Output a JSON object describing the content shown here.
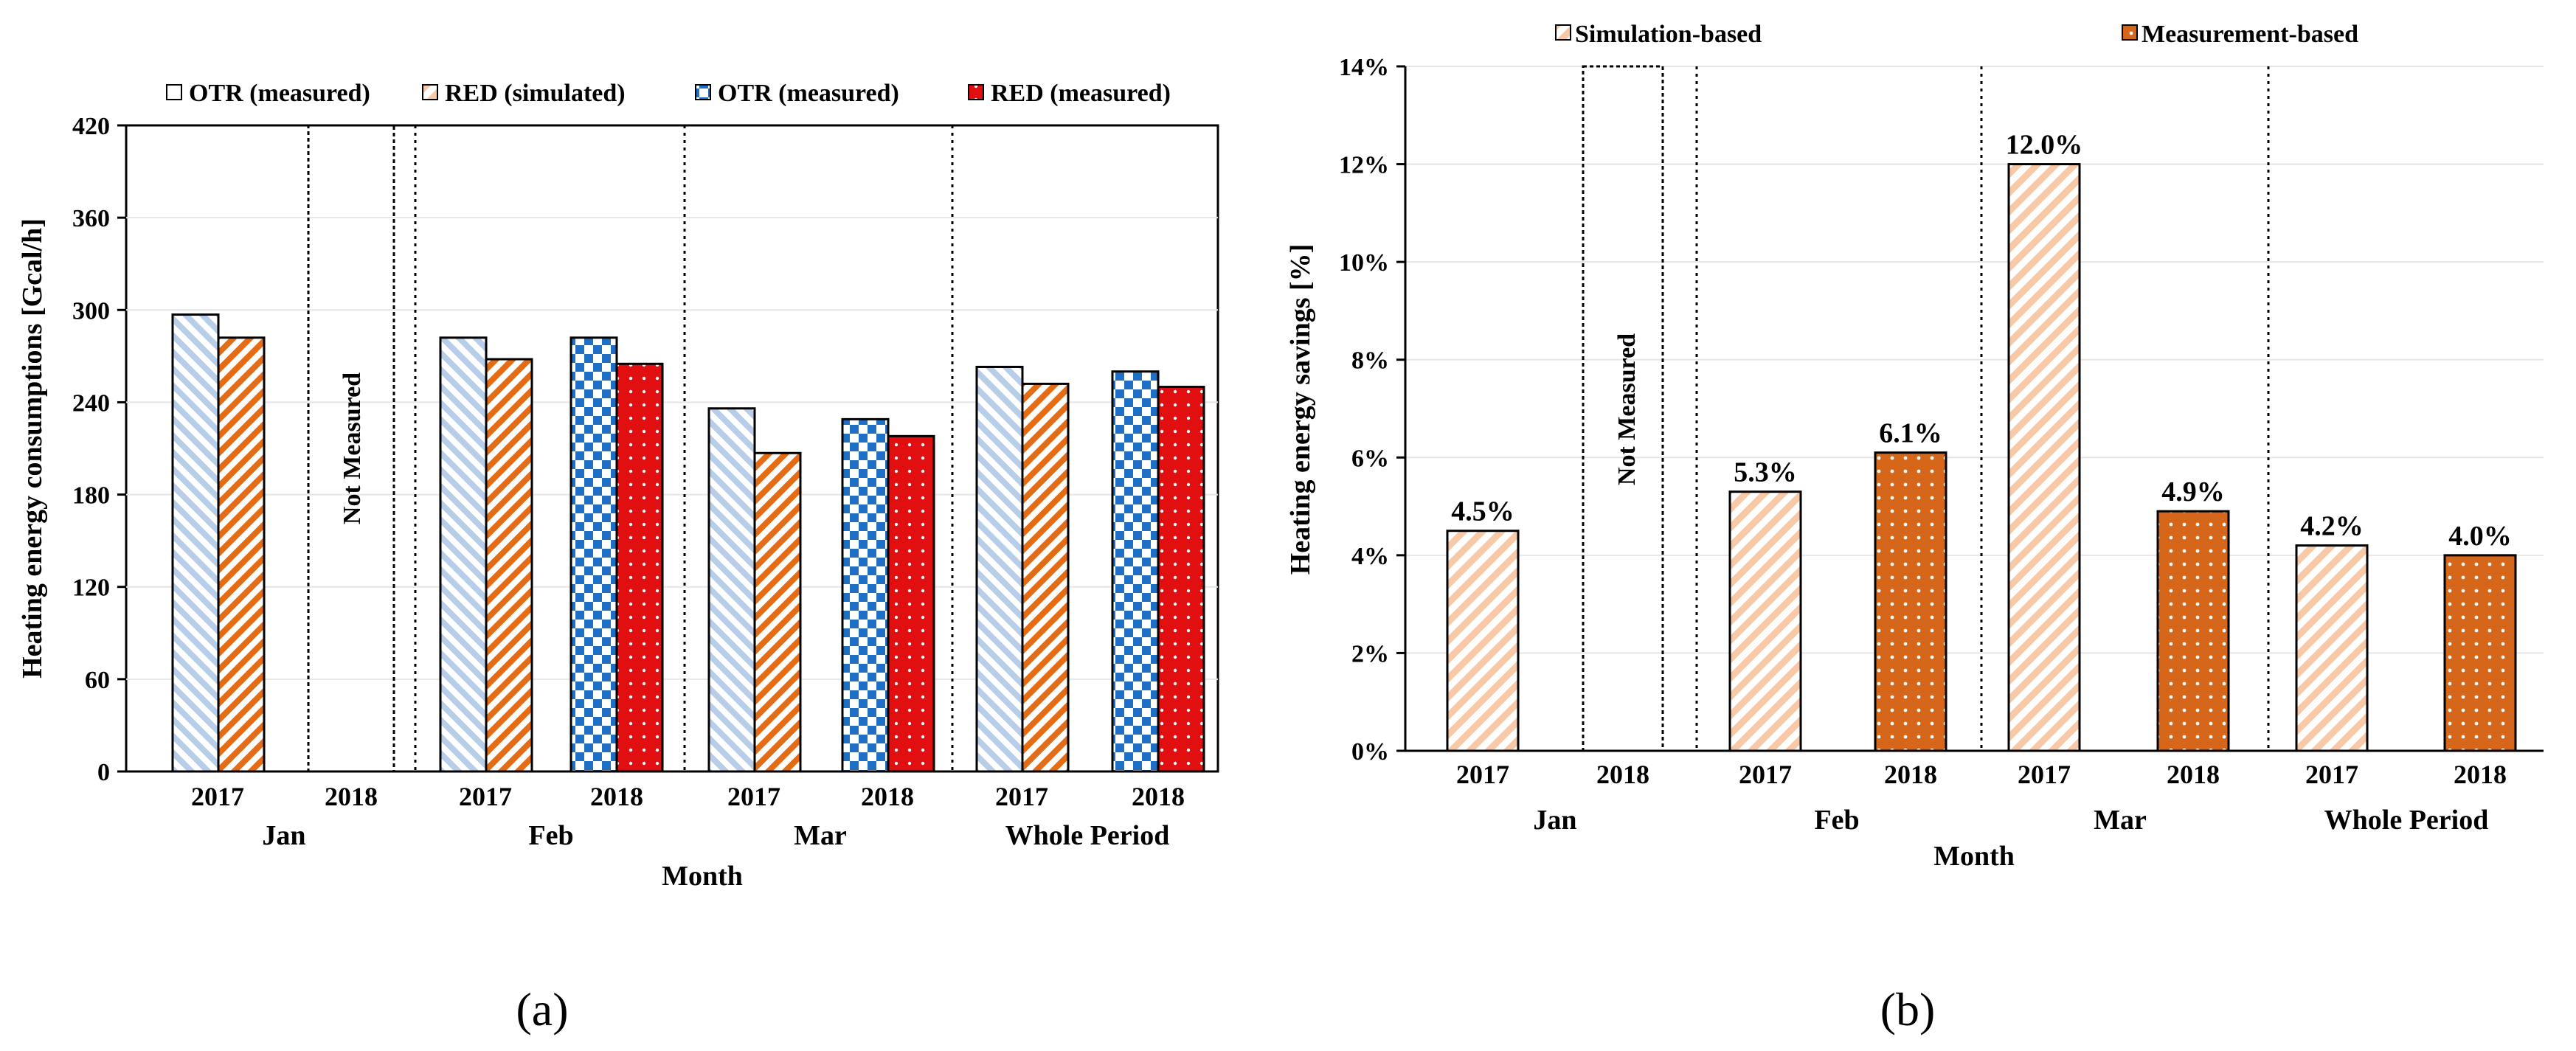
{
  "chart_data": [
    {
      "type": "bar",
      "panel_label": "(a)",
      "title": "",
      "xlabel": "Month",
      "ylabel": "Heating energy consumptions [Gcal/h]",
      "ylim": [
        0,
        420
      ],
      "yticks": [
        "0",
        "60",
        "120",
        "180",
        "240",
        "300",
        "360",
        "420"
      ],
      "legend": [
        "OTR (measured)",
        "RED (simulated)",
        "OTR (measured)",
        "RED (measured)"
      ],
      "groups": [
        "Jan",
        "Feb",
        "Mar",
        "Whole Period"
      ],
      "years": [
        "2017",
        "2018"
      ],
      "not_measured_label": "Not Measured",
      "series": [
        {
          "name": "OTR (measured)",
          "group_values": [
            297,
            282,
            236,
            263
          ],
          "year": "2017"
        },
        {
          "name": "RED (simulated)",
          "group_values": [
            282,
            268,
            207,
            252
          ],
          "year": "2017"
        },
        {
          "name": "OTR (measured)",
          "group_values": [
            null,
            282,
            229,
            260
          ],
          "year": "2018"
        },
        {
          "name": "RED (measured)",
          "group_values": [
            null,
            265,
            218,
            250
          ],
          "year": "2018"
        }
      ]
    },
    {
      "type": "bar",
      "panel_label": "(b)",
      "title": "",
      "xlabel": "Month",
      "ylabel": "Heating energy savings [%]",
      "ylim": [
        0,
        14
      ],
      "yticks": [
        "0%",
        "2%",
        "4%",
        "6%",
        "8%",
        "10%",
        "12%",
        "14%"
      ],
      "legend": [
        "Simulation-based",
        "Measurement-based"
      ],
      "groups": [
        "Jan",
        "Feb",
        "Mar",
        "Whole Period"
      ],
      "years": [
        "2017",
        "2018"
      ],
      "not_measured_label": "Not Measured",
      "series": [
        {
          "name": "Simulation-based",
          "year": "2017",
          "values": [
            4.5,
            5.3,
            12.0,
            4.2
          ],
          "labels": [
            "4.5%",
            "5.3%",
            "12.0%",
            "4.2%"
          ]
        },
        {
          "name": "Measurement-based",
          "year": "2018",
          "values": [
            null,
            6.1,
            4.9,
            4.0
          ],
          "labels": [
            "",
            "6.1%",
            "4.9%",
            "4.0%"
          ]
        }
      ]
    }
  ]
}
